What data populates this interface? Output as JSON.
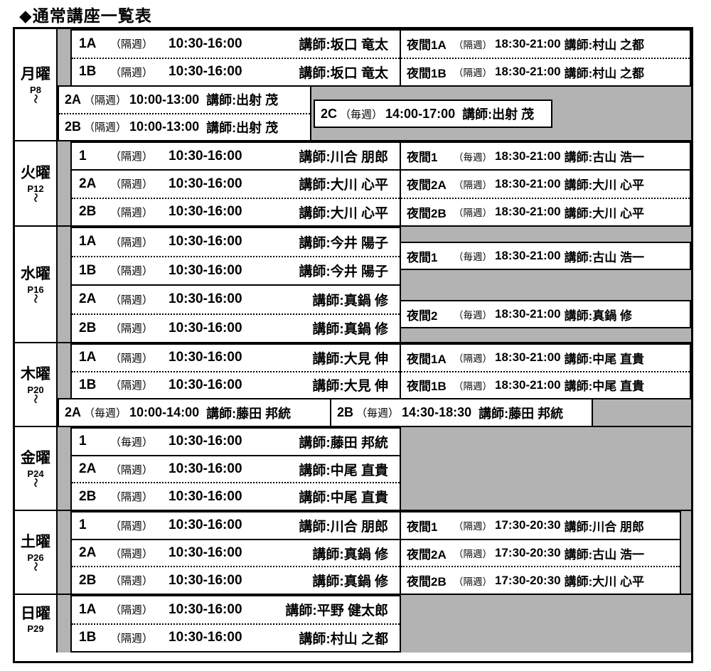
{
  "title": "◆通常講座一覧表",
  "colors": {
    "table_gray": "#b3b3b3",
    "border": "#000000",
    "background": "#ffffff"
  },
  "days": [
    {
      "label": "月曜",
      "page": "P8",
      "tilde": "〜",
      "day_courses": [
        {
          "label": "1A",
          "freq": "（隔週）",
          "time": "10:30-16:00",
          "teacher": "講師:坂口 竜太"
        },
        {
          "label": "1B",
          "freq": "（隔週）",
          "time": "10:30-16:00",
          "teacher": "講師:坂口 竜太"
        }
      ],
      "night_courses": [
        {
          "label": "夜間1A",
          "freq": "（隔週）",
          "time": "18:30-21:00",
          "teacher": "講師:村山 之都"
        },
        {
          "label": "夜間1B",
          "freq": "（隔週）",
          "time": "18:30-21:00",
          "teacher": "講師:村山 之都"
        }
      ],
      "extra_courses": [
        {
          "label": "2A",
          "freq": "（隔週）",
          "time": "10:00-13:00",
          "teacher": "講師:出射 茂"
        },
        {
          "label": "2B",
          "freq": "（隔週）",
          "time": "10:00-13:00",
          "teacher": "講師:出射 茂"
        }
      ],
      "floating_course": {
        "label": "2C",
        "freq": "（毎週）",
        "time": "14:00-17:00",
        "teacher": "講師:出射 茂"
      }
    },
    {
      "label": "火曜",
      "page": "P12",
      "tilde": "〜",
      "day_courses": [
        {
          "label": "1",
          "freq": "（隔週）",
          "time": "10:30-16:00",
          "teacher": "講師:川合 朋郎"
        },
        {
          "label": "2A",
          "freq": "（隔週）",
          "time": "10:30-16:00",
          "teacher": "講師:大川 心平"
        },
        {
          "label": "2B",
          "freq": "（隔週）",
          "time": "10:30-16:00",
          "teacher": "講師:大川 心平"
        }
      ],
      "night_courses": [
        {
          "label": "夜間1",
          "freq": "（毎週）",
          "time": "18:30-21:00",
          "teacher": "講師:古山 浩一"
        },
        {
          "label": "夜間2A",
          "freq": "（隔週）",
          "time": "18:30-21:00",
          "teacher": "講師:大川 心平"
        },
        {
          "label": "夜間2B",
          "freq": "（隔週）",
          "time": "18:30-21:00",
          "teacher": "講師:大川 心平"
        }
      ]
    },
    {
      "label": "水曜",
      "page": "P16",
      "tilde": "〜",
      "day_courses": [
        {
          "label": "1A",
          "freq": "（隔週）",
          "time": "10:30-16:00",
          "teacher": "講師:今井 陽子"
        },
        {
          "label": "1B",
          "freq": "（隔週）",
          "time": "10:30-16:00",
          "teacher": "講師:今井 陽子"
        },
        {
          "label": "2A",
          "freq": "（隔週）",
          "time": "10:30-16:00",
          "teacher": "講師:真鍋 修"
        },
        {
          "label": "2B",
          "freq": "（隔週）",
          "time": "10:30-16:00",
          "teacher": "講師:真鍋 修"
        }
      ],
      "night_courses": [
        {
          "label": "夜間1",
          "freq": "（毎週）",
          "time": "18:30-21:00",
          "teacher": "講師:古山 浩一"
        },
        {
          "label": "夜間2",
          "freq": "（毎週）",
          "time": "18:30-21:00",
          "teacher": "講師:真鍋 修"
        }
      ]
    },
    {
      "label": "木曜",
      "page": "P20",
      "tilde": "〜",
      "day_courses": [
        {
          "label": "1A",
          "freq": "（隔週）",
          "time": "10:30-16:00",
          "teacher": "講師:大見 伸"
        },
        {
          "label": "1B",
          "freq": "（隔週）",
          "time": "10:30-16:00",
          "teacher": "講師:大見 伸"
        }
      ],
      "night_courses": [
        {
          "label": "夜間1A",
          "freq": "（隔週）",
          "time": "18:30-21:00",
          "teacher": "講師:中尾 直貴"
        },
        {
          "label": "夜間1B",
          "freq": "（隔週）",
          "time": "18:30-21:00",
          "teacher": "講師:中尾 直貴"
        }
      ],
      "extra_courses": [
        {
          "label": "2A",
          "freq": "（毎週）",
          "time": "10:00-14:00",
          "teacher": "講師:藤田 邦統"
        },
        {
          "label": "2B",
          "freq": "（毎週）",
          "time": "14:30-18:30",
          "teacher": "講師:藤田 邦統"
        }
      ]
    },
    {
      "label": "金曜",
      "page": "P24",
      "tilde": "〜",
      "day_courses": [
        {
          "label": "1",
          "freq": "（毎週）",
          "time": "10:30-16:00",
          "teacher": "講師:藤田 邦統"
        },
        {
          "label": "2A",
          "freq": "（隔週）",
          "time": "10:30-16:00",
          "teacher": "講師:中尾 直貴"
        },
        {
          "label": "2B",
          "freq": "（隔週）",
          "time": "10:30-16:00",
          "teacher": "講師:中尾 直貴"
        }
      ]
    },
    {
      "label": "土曜",
      "page": "P26",
      "tilde": "〜",
      "day_courses": [
        {
          "label": "1",
          "freq": "（隔週）",
          "time": "10:30-16:00",
          "teacher": "講師:川合 朋郎"
        },
        {
          "label": "2A",
          "freq": "（隔週）",
          "time": "10:30-16:00",
          "teacher": "講師:真鍋 修"
        },
        {
          "label": "2B",
          "freq": "（隔週）",
          "time": "10:30-16:00",
          "teacher": "講師:真鍋 修"
        }
      ],
      "night_courses": [
        {
          "label": "夜間1",
          "freq": "（隔週）",
          "time": "17:30-20:30",
          "teacher": "講師:川合 朋郎"
        },
        {
          "label": "夜間2A",
          "freq": "（隔週）",
          "time": "17:30-20:30",
          "teacher": "講師:古山 浩一"
        },
        {
          "label": "夜間2B",
          "freq": "（隔週）",
          "time": "17:30-20:30",
          "teacher": "講師:大川 心平"
        }
      ]
    },
    {
      "label": "日曜",
      "page": "P29",
      "tilde": "",
      "day_courses": [
        {
          "label": "1A",
          "freq": "（隔週）",
          "time": "10:30-16:00",
          "teacher": "講師:平野 健太郎"
        },
        {
          "label": "1B",
          "freq": "（隔週）",
          "time": "10:30-16:00",
          "teacher": "講師:村山 之都"
        }
      ]
    }
  ]
}
